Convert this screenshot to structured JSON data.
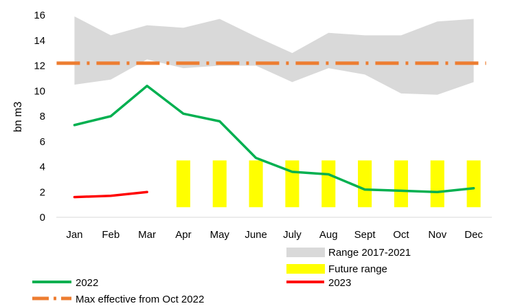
{
  "chart_data": {
    "type": "line",
    "categories": [
      "Jan",
      "Feb",
      "Mar",
      "Apr",
      "May",
      "June",
      "July",
      "Aug",
      "Sept",
      "Oct",
      "Nov",
      "Dec"
    ],
    "ylabel": "bn m3",
    "ylim": [
      0,
      16
    ],
    "yticks": [
      0,
      2,
      4,
      6,
      8,
      10,
      12,
      14,
      16
    ],
    "grid": false,
    "range": {
      "name": "Range 2017-2021",
      "color": "#d9d9d9",
      "low": [
        10.5,
        10.9,
        12.5,
        11.8,
        12.0,
        12.0,
        10.7,
        11.8,
        11.3,
        9.8,
        9.7,
        10.7
      ],
      "high": [
        15.9,
        14.4,
        15.2,
        15.0,
        15.7,
        14.3,
        13.0,
        14.6,
        14.4,
        14.4,
        15.5,
        15.7
      ]
    },
    "future_range": {
      "name": "Future range",
      "color": "#ffff00",
      "months": [
        "Apr",
        "May",
        "June",
        "July",
        "Aug",
        "Sept",
        "Oct",
        "Nov",
        "Dec"
      ],
      "low": 0.8,
      "high": 4.5
    },
    "series": [
      {
        "name": "2022",
        "color": "#00b050",
        "values": [
          7.3,
          8.0,
          10.4,
          8.2,
          7.6,
          4.7,
          3.6,
          3.4,
          2.2,
          2.1,
          2.0,
          2.3
        ]
      },
      {
        "name": "2023",
        "color": "#ff0000",
        "values": [
          1.6,
          1.7,
          2.0,
          null,
          null,
          null,
          null,
          null,
          null,
          null,
          null,
          null
        ]
      }
    ],
    "max_effective": {
      "name": "Max effective from Oct 2022",
      "value": 12.2,
      "color": "#ed7d31"
    }
  }
}
